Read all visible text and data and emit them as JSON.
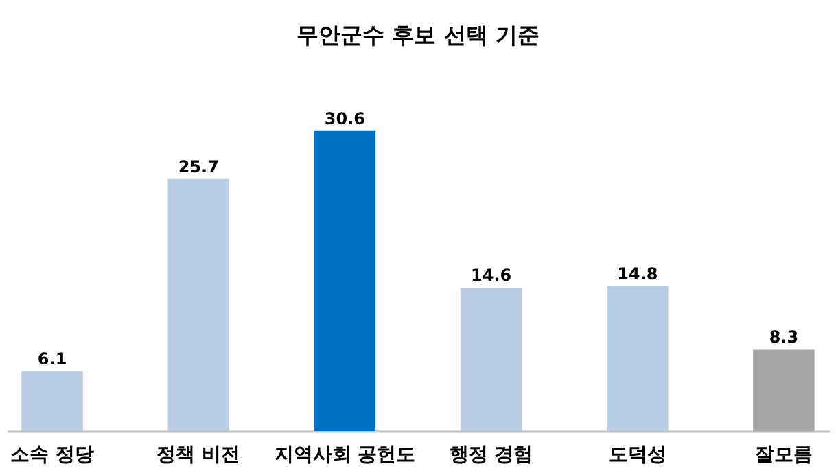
{
  "chart_data": {
    "type": "bar",
    "title": "무안군수 후보 선택 기준",
    "categories": [
      "소속 정당",
      "정책 비전",
      "지역사회 공헌도",
      "행정 경험",
      "도덕성",
      "잘모름"
    ],
    "values": [
      6.1,
      25.7,
      30.6,
      14.6,
      14.8,
      8.3
    ],
    "colors": [
      "#b9cde5",
      "#b9cde5",
      "#0070c0",
      "#b9cde5",
      "#b9cde5",
      "#a6a6a6"
    ],
    "data_labels": true
  }
}
